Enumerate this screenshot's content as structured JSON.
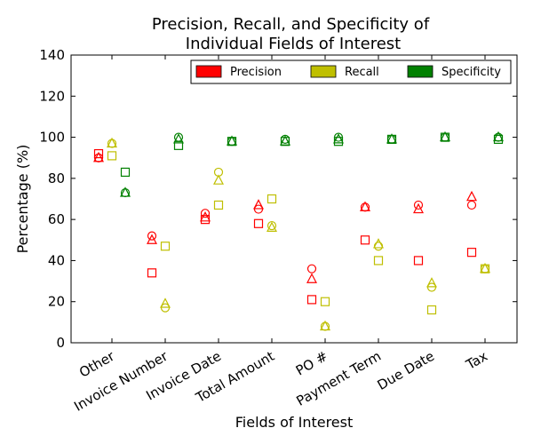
{
  "chart_data": {
    "type": "scatter",
    "title_lines": [
      "Precision, Recall, and Specificity of",
      "Individual Fields of Interest"
    ],
    "xlabel": "Fields of Interest",
    "ylabel": "Percentage (%)",
    "ylim": [
      0,
      140
    ],
    "yticks": [
      0,
      20,
      40,
      60,
      80,
      100,
      120,
      140
    ],
    "categories": [
      "Other",
      "Invoice Number",
      "Invoice Date",
      "Total Amount",
      "PO #",
      "Payment Term",
      "Due Date",
      "Tax"
    ],
    "grid": false,
    "legend_position": "top-right",
    "marker_types": [
      "square",
      "circle",
      "triangle"
    ],
    "series": [
      {
        "name": "Precision",
        "color": "#ff0000",
        "square": [
          92,
          34,
          60,
          58,
          21,
          50,
          40,
          44
        ],
        "circle": [
          90,
          52,
          63,
          65,
          36,
          66,
          67,
          67
        ],
        "triangle": [
          90,
          50,
          61,
          67,
          31,
          66,
          65,
          71
        ]
      },
      {
        "name": "Recall",
        "color": "#bfbf00",
        "square": [
          91,
          47,
          67,
          70,
          20,
          40,
          16,
          36
        ],
        "circle": [
          97,
          17,
          83,
          57,
          8,
          47,
          27,
          36
        ],
        "triangle": [
          97,
          19,
          79,
          56,
          8,
          48,
          29,
          36
        ]
      },
      {
        "name": "Specificity",
        "color": "#008000",
        "square": [
          83,
          96,
          98,
          98,
          98,
          99,
          100,
          99
        ],
        "circle": [
          73,
          100,
          98,
          99,
          100,
          99,
          100,
          100
        ],
        "triangle": [
          73,
          99,
          98,
          98,
          99,
          99,
          100,
          100
        ]
      }
    ]
  }
}
